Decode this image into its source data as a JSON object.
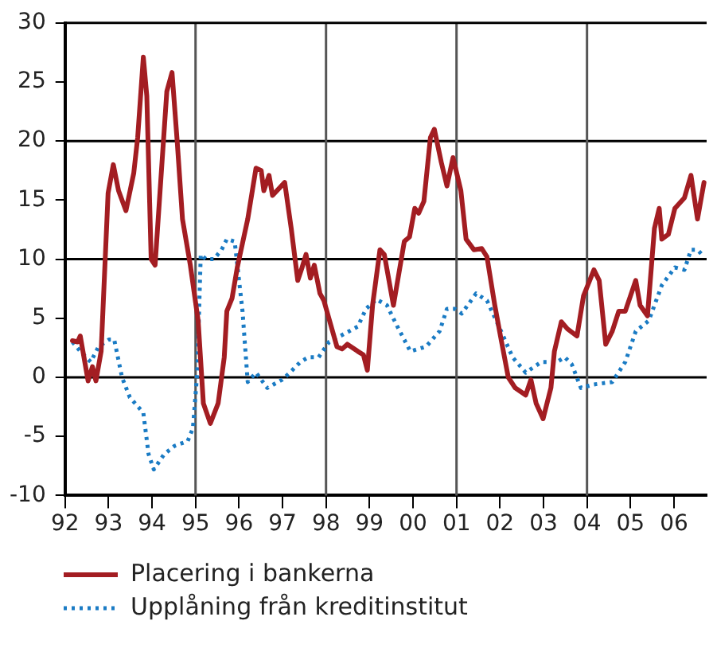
{
  "chart_data": {
    "type": "line",
    "xlim": [
      1992,
      2006.75
    ],
    "xticks": [
      {
        "value": 1992,
        "label": "92"
      },
      {
        "value": 1993,
        "label": "93"
      },
      {
        "value": 1994,
        "label": "94"
      },
      {
        "value": 1995,
        "label": "95"
      },
      {
        "value": 1996,
        "label": "96"
      },
      {
        "value": 1997,
        "label": "97"
      },
      {
        "value": 1998,
        "label": "98"
      },
      {
        "value": 1999,
        "label": "99"
      },
      {
        "value": 2000,
        "label": "00"
      },
      {
        "value": 2001,
        "label": "01"
      },
      {
        "value": 2002,
        "label": "02"
      },
      {
        "value": 2003,
        "label": "03"
      },
      {
        "value": 2004,
        "label": "04"
      },
      {
        "value": 2005,
        "label": "05"
      },
      {
        "value": 2006,
        "label": "06"
      }
    ],
    "ylim": [
      -10,
      30
    ],
    "yticks": [
      -10,
      -5,
      0,
      5,
      10,
      15,
      20,
      25,
      30
    ],
    "grid": false,
    "legend": "bottom left",
    "ref_lines": [
      {
        "axis": "y",
        "value": 0,
        "color": "#000000"
      },
      {
        "axis": "y",
        "value": 10,
        "color": "#000000"
      },
      {
        "axis": "y",
        "value": 20,
        "color": "#000000"
      },
      {
        "axis": "x",
        "value": 1995,
        "color": "#555555"
      },
      {
        "axis": "x",
        "value": 1998,
        "color": "#555555"
      },
      {
        "axis": "x",
        "value": 2001,
        "color": "#555555"
      },
      {
        "axis": "x",
        "value": 2004,
        "color": "#555555"
      }
    ],
    "series": [
      {
        "name": "Placering i bankerna",
        "color": "#a31d22",
        "line_style": "solid",
        "x": [
          1992.17,
          1992.29,
          1992.35,
          1992.53,
          1992.63,
          1992.71,
          1992.83,
          1992.99,
          1993.11,
          1993.23,
          1993.4,
          1993.58,
          1993.67,
          1993.8,
          1993.88,
          1993.98,
          1994.07,
          1994.22,
          1994.34,
          1994.46,
          1994.58,
          1994.7,
          1994.88,
          1995.06,
          1995.18,
          1995.34,
          1995.52,
          1995.66,
          1995.72,
          1995.84,
          1995.96,
          1996.2,
          1996.39,
          1996.51,
          1996.57,
          1996.69,
          1996.77,
          1997.05,
          1997.2,
          1997.35,
          1997.45,
          1997.54,
          1997.64,
          1997.73,
          1997.86,
          1997.95,
          1998.25,
          1998.37,
          1998.49,
          1998.73,
          1998.86,
          1998.95,
          1999.07,
          1999.24,
          1999.34,
          1999.55,
          1999.8,
          1999.92,
          2000.04,
          2000.13,
          2000.25,
          2000.4,
          2000.49,
          2000.65,
          2000.78,
          2000.92,
          2001.1,
          2001.22,
          2001.4,
          2001.58,
          2001.7,
          2001.88,
          2002.01,
          2002.19,
          2002.35,
          2002.59,
          2002.71,
          2002.83,
          2002.99,
          2003.17,
          2003.25,
          2003.41,
          2003.55,
          2003.77,
          2003.92,
          2004.16,
          2004.28,
          2004.43,
          2004.58,
          2004.73,
          2004.88,
          2005.12,
          2005.22,
          2005.39,
          2005.55,
          2005.66,
          2005.72,
          2005.87,
          2006.02,
          2006.24,
          2006.39,
          2006.54,
          2006.69
        ],
        "values": [
          3.1,
          3.0,
          3.5,
          -0.3,
          0.9,
          -0.3,
          2.2,
          15.6,
          18.0,
          15.8,
          14.1,
          17.3,
          20.3,
          27.1,
          23.8,
          10.0,
          9.5,
          17.7,
          24.2,
          25.8,
          19.9,
          13.4,
          9.5,
          4.8,
          -2.2,
          -3.9,
          -2.2,
          1.7,
          5.6,
          6.7,
          9.3,
          13.4,
          17.7,
          17.5,
          15.8,
          17.1,
          15.4,
          16.5,
          12.6,
          8.2,
          9.3,
          10.4,
          8.4,
          9.5,
          7.1,
          6.5,
          2.6,
          2.4,
          2.8,
          2.2,
          1.9,
          0.6,
          6.1,
          10.8,
          10.4,
          6.1,
          11.5,
          11.9,
          14.3,
          13.9,
          14.9,
          20.3,
          21.0,
          18.2,
          16.2,
          18.6,
          15.8,
          11.7,
          10.8,
          10.9,
          10.2,
          6.1,
          3.5,
          0.0,
          -0.9,
          -1.5,
          -0.2,
          -2.2,
          -3.5,
          -0.9,
          2.2,
          4.7,
          4.1,
          3.5,
          6.9,
          9.1,
          8.2,
          2.8,
          3.9,
          5.6,
          5.6,
          8.2,
          6.1,
          5.2,
          12.6,
          14.3,
          11.7,
          12.1,
          14.3,
          15.2,
          17.1,
          13.4,
          16.5
        ]
      },
      {
        "name": "Upplåning från kreditinstitut",
        "color": "#1a7bc4",
        "line_style": "dotted",
        "x": [
          1992.17,
          1992.35,
          1992.59,
          1992.77,
          1993.01,
          1993.13,
          1993.31,
          1993.49,
          1993.8,
          1993.92,
          1994.04,
          1994.28,
          1994.52,
          1994.82,
          1994.94,
          1995.04,
          1995.12,
          1995.24,
          1995.42,
          1995.6,
          1995.72,
          1995.9,
          1996.08,
          1996.2,
          1996.39,
          1996.65,
          1996.99,
          1997.17,
          1997.41,
          1997.59,
          1997.83,
          1998.07,
          1998.43,
          1998.73,
          1998.92,
          1999.16,
          1999.4,
          1999.64,
          1999.94,
          2000.3,
          2000.61,
          2000.78,
          2000.96,
          2001.12,
          2001.45,
          2001.7,
          2002.0,
          2002.29,
          2002.59,
          2002.95,
          2003.31,
          2003.49,
          2003.65,
          2003.86,
          2004.16,
          2004.58,
          2004.88,
          2005.12,
          2005.42,
          2005.72,
          2006.02,
          2006.24,
          2006.39,
          2006.54,
          2006.69
        ],
        "values": [
          3.0,
          2.2,
          1.3,
          2.6,
          3.2,
          3.2,
          0.0,
          -1.7,
          -3.0,
          -6.5,
          -7.8,
          -6.5,
          -5.8,
          -5.4,
          -4.3,
          0.4,
          10.4,
          10.0,
          10.0,
          10.8,
          11.7,
          11.5,
          5.6,
          -0.4,
          0.4,
          -0.9,
          -0.2,
          0.4,
          1.3,
          1.7,
          1.7,
          3.0,
          3.7,
          4.3,
          5.8,
          6.6,
          6.1,
          4.3,
          2.2,
          2.6,
          3.9,
          5.8,
          5.8,
          5.4,
          7.1,
          6.5,
          4.1,
          1.7,
          0.4,
          1.3,
          1.3,
          1.7,
          1.1,
          -0.9,
          -0.6,
          -0.4,
          1.3,
          3.9,
          4.8,
          7.8,
          9.3,
          9.1,
          10.8,
          10.8,
          10.2
        ]
      }
    ]
  }
}
